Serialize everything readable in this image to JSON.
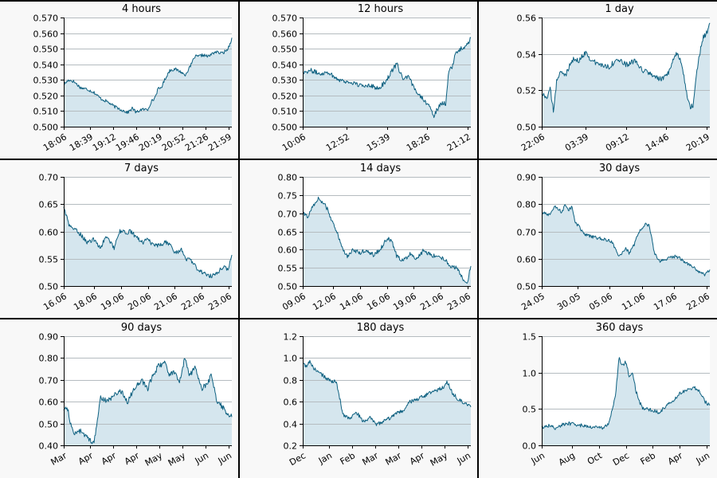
{
  "colors": {
    "line": "#0d6080",
    "fill": "#d5e6ee",
    "grid": "#b5bcc0",
    "axis": "#000000",
    "panel_bg": "#f8f8f8",
    "divider": "#000000"
  },
  "chart_data": [
    {
      "type": "area",
      "title": "4 hours",
      "ylim": [
        0.5,
        0.57
      ],
      "yticks": [
        "0.500",
        "0.510",
        "0.520",
        "0.530",
        "0.540",
        "0.550",
        "0.560",
        "0.570"
      ],
      "xticks": [
        "18:06",
        "18:39",
        "19:12",
        "19:46",
        "20:19",
        "20:52",
        "21:26",
        "21:59"
      ],
      "grid": "horizontal",
      "x": [
        0,
        0.03,
        0.06,
        0.1,
        0.14,
        0.18,
        0.22,
        0.26,
        0.3,
        0.34,
        0.38,
        0.41,
        0.43,
        0.46,
        0.5,
        0.52,
        0.54,
        0.56,
        0.58,
        0.6,
        0.63,
        0.66,
        0.7,
        0.72,
        0.75,
        0.78,
        0.8,
        0.83,
        0.86,
        0.9,
        0.94,
        0.97,
        0.985,
        1.0
      ],
      "values": [
        0.527,
        0.53,
        0.529,
        0.525,
        0.524,
        0.522,
        0.518,
        0.516,
        0.513,
        0.511,
        0.509,
        0.512,
        0.509,
        0.511,
        0.511,
        0.516,
        0.518,
        0.524,
        0.525,
        0.53,
        0.536,
        0.537,
        0.535,
        0.533,
        0.538,
        0.545,
        0.545,
        0.546,
        0.545,
        0.548,
        0.547,
        0.549,
        0.552,
        0.557
      ],
      "noise": 0.001
    },
    {
      "type": "area",
      "title": "12 hours",
      "ylim": [
        0.5,
        0.57
      ],
      "yticks": [
        "0.500",
        "0.510",
        "0.520",
        "0.530",
        "0.540",
        "0.550",
        "0.560",
        "0.570"
      ],
      "xticks": [
        "10:06",
        "12:52",
        "15:39",
        "18:26",
        "21:12"
      ],
      "grid": "horizontal",
      "x": [
        0,
        0.05,
        0.1,
        0.15,
        0.2,
        0.25,
        0.3,
        0.35,
        0.4,
        0.45,
        0.5,
        0.53,
        0.56,
        0.6,
        0.63,
        0.66,
        0.7,
        0.74,
        0.78,
        0.82,
        0.85,
        0.87,
        0.89,
        0.91,
        0.94,
        0.97,
        1.0
      ],
      "values": [
        0.535,
        0.536,
        0.534,
        0.535,
        0.531,
        0.529,
        0.528,
        0.526,
        0.527,
        0.524,
        0.53,
        0.536,
        0.54,
        0.53,
        0.532,
        0.525,
        0.52,
        0.515,
        0.507,
        0.515,
        0.515,
        0.537,
        0.538,
        0.547,
        0.55,
        0.551,
        0.557
      ],
      "noise": 0.0015
    },
    {
      "type": "area",
      "title": "1 day",
      "ylim": [
        0.5,
        0.56
      ],
      "yticks": [
        "0.50",
        "0.52",
        "0.54",
        "0.56"
      ],
      "xticks": [
        "22:06",
        "03:39",
        "09:12",
        "14:46",
        "20:19"
      ],
      "grid": "horizontal",
      "x": [
        0,
        0.03,
        0.05,
        0.07,
        0.09,
        0.11,
        0.14,
        0.18,
        0.22,
        0.26,
        0.3,
        0.35,
        0.4,
        0.45,
        0.5,
        0.55,
        0.6,
        0.65,
        0.7,
        0.73,
        0.76,
        0.8,
        0.83,
        0.86,
        0.88,
        0.9,
        0.93,
        0.96,
        0.98,
        1.0
      ],
      "values": [
        0.518,
        0.516,
        0.521,
        0.508,
        0.526,
        0.53,
        0.528,
        0.537,
        0.536,
        0.541,
        0.536,
        0.534,
        0.533,
        0.537,
        0.534,
        0.536,
        0.531,
        0.529,
        0.526,
        0.527,
        0.53,
        0.541,
        0.536,
        0.52,
        0.511,
        0.512,
        0.536,
        0.549,
        0.551,
        0.557
      ],
      "noise": 0.0015
    },
    {
      "type": "area",
      "title": "7 days",
      "ylim": [
        0.5,
        0.7
      ],
      "yticks": [
        "0.50",
        "0.55",
        "0.60",
        "0.65",
        "0.70"
      ],
      "xticks": [
        "16.06",
        "18.06",
        "19.06",
        "20.06",
        "21.06",
        "22.06",
        "23.06"
      ],
      "grid": "horizontal",
      "x": [
        0,
        0.01,
        0.03,
        0.06,
        0.1,
        0.14,
        0.18,
        0.22,
        0.25,
        0.28,
        0.3,
        0.33,
        0.37,
        0.4,
        0.43,
        0.47,
        0.5,
        0.53,
        0.56,
        0.6,
        0.63,
        0.66,
        0.7,
        0.73,
        0.76,
        0.8,
        0.83,
        0.86,
        0.9,
        0.93,
        0.96,
        0.98,
        1.0
      ],
      "values": [
        0.645,
        0.635,
        0.612,
        0.605,
        0.595,
        0.58,
        0.585,
        0.57,
        0.59,
        0.58,
        0.57,
        0.6,
        0.598,
        0.6,
        0.59,
        0.58,
        0.585,
        0.575,
        0.573,
        0.58,
        0.578,
        0.56,
        0.566,
        0.55,
        0.545,
        0.53,
        0.525,
        0.518,
        0.52,
        0.53,
        0.535,
        0.53,
        0.557
      ],
      "noise": 0.004
    },
    {
      "type": "area",
      "title": "14 days",
      "ylim": [
        0.5,
        0.8
      ],
      "yticks": [
        "0.50",
        "0.55",
        "0.60",
        "0.65",
        "0.70",
        "0.75",
        "0.80"
      ],
      "xticks": [
        "09.06",
        "12.06",
        "14.06",
        "16.06",
        "19.06",
        "21.06",
        "23.06"
      ],
      "grid": "horizontal",
      "x": [
        0,
        0.03,
        0.06,
        0.09,
        0.12,
        0.15,
        0.18,
        0.21,
        0.24,
        0.27,
        0.3,
        0.34,
        0.38,
        0.42,
        0.46,
        0.5,
        0.53,
        0.56,
        0.6,
        0.64,
        0.68,
        0.72,
        0.76,
        0.8,
        0.84,
        0.88,
        0.92,
        0.95,
        0.98,
        1.0
      ],
      "values": [
        0.7,
        0.69,
        0.72,
        0.74,
        0.73,
        0.71,
        0.67,
        0.64,
        0.6,
        0.58,
        0.6,
        0.59,
        0.6,
        0.585,
        0.6,
        0.63,
        0.625,
        0.58,
        0.57,
        0.59,
        0.575,
        0.6,
        0.585,
        0.583,
        0.575,
        0.555,
        0.548,
        0.52,
        0.512,
        0.555
      ],
      "noise": 0.006
    },
    {
      "type": "area",
      "title": "30 days",
      "ylim": [
        0.5,
        0.9
      ],
      "yticks": [
        "0.50",
        "0.60",
        "0.70",
        "0.80",
        "0.90"
      ],
      "xticks": [
        "24.05",
        "30.05",
        "05.06",
        "11.06",
        "17.06",
        "22.06"
      ],
      "grid": "horizontal",
      "x": [
        0,
        0.04,
        0.08,
        0.12,
        0.14,
        0.16,
        0.18,
        0.2,
        0.22,
        0.25,
        0.3,
        0.34,
        0.38,
        0.42,
        0.46,
        0.5,
        0.52,
        0.55,
        0.58,
        0.62,
        0.64,
        0.67,
        0.7,
        0.75,
        0.8,
        0.85,
        0.9,
        0.94,
        0.97,
        1.0
      ],
      "values": [
        0.77,
        0.76,
        0.79,
        0.77,
        0.8,
        0.78,
        0.79,
        0.73,
        0.72,
        0.69,
        0.68,
        0.675,
        0.67,
        0.66,
        0.61,
        0.64,
        0.62,
        0.65,
        0.7,
        0.73,
        0.72,
        0.62,
        0.59,
        0.6,
        0.61,
        0.59,
        0.57,
        0.55,
        0.54,
        0.56
      ],
      "noise": 0.006
    },
    {
      "type": "area",
      "title": "90 days",
      "ylim": [
        0.4,
        0.9
      ],
      "yticks": [
        "0.40",
        "0.50",
        "0.60",
        "0.70",
        "0.80",
        "0.90"
      ],
      "xticks": [
        "Mar",
        "Apr",
        "Apr",
        "Apr",
        "May",
        "May",
        "Jun",
        "Jun"
      ],
      "grid": "horizontal",
      "x": [
        0,
        0.02,
        0.04,
        0.06,
        0.09,
        0.12,
        0.15,
        0.18,
        0.22,
        0.26,
        0.3,
        0.34,
        0.38,
        0.42,
        0.46,
        0.5,
        0.53,
        0.56,
        0.6,
        0.63,
        0.66,
        0.69,
        0.72,
        0.75,
        0.78,
        0.82,
        0.85,
        0.88,
        0.91,
        0.94,
        0.97,
        1.0
      ],
      "values": [
        0.56,
        0.58,
        0.5,
        0.45,
        0.47,
        0.45,
        0.43,
        0.41,
        0.62,
        0.6,
        0.63,
        0.65,
        0.6,
        0.66,
        0.7,
        0.66,
        0.72,
        0.76,
        0.78,
        0.72,
        0.74,
        0.69,
        0.8,
        0.72,
        0.76,
        0.66,
        0.68,
        0.72,
        0.6,
        0.58,
        0.55,
        0.53
      ],
      "noise": 0.012
    },
    {
      "type": "area",
      "title": "180 days",
      "ylim": [
        0.2,
        1.2
      ],
      "yticks": [
        "0.2",
        "0.4",
        "0.6",
        "0.8",
        "1.0",
        "1.2"
      ],
      "xticks": [
        "Dec",
        "Jan",
        "Feb",
        "Mar",
        "Mar",
        "Apr",
        "May",
        "Jun"
      ],
      "grid": "horizontal",
      "x": [
        0,
        0.02,
        0.04,
        0.07,
        0.1,
        0.13,
        0.16,
        0.2,
        0.24,
        0.28,
        0.32,
        0.36,
        0.4,
        0.44,
        0.48,
        0.52,
        0.56,
        0.6,
        0.64,
        0.68,
        0.72,
        0.76,
        0.8,
        0.84,
        0.86,
        0.89,
        0.92,
        0.95,
        0.98,
        1.0
      ],
      "values": [
        0.95,
        0.92,
        0.97,
        0.9,
        0.86,
        0.83,
        0.79,
        0.78,
        0.48,
        0.45,
        0.5,
        0.42,
        0.45,
        0.39,
        0.42,
        0.45,
        0.49,
        0.52,
        0.6,
        0.62,
        0.65,
        0.68,
        0.7,
        0.74,
        0.78,
        0.68,
        0.63,
        0.6,
        0.58,
        0.55
      ],
      "noise": 0.018
    },
    {
      "type": "area",
      "title": "360 days",
      "ylim": [
        0.0,
        1.5
      ],
      "yticks": [
        "0.0",
        "0.5",
        "1.0",
        "1.5"
      ],
      "xticks": [
        "Jun",
        "Aug",
        "Oct",
        "Dec",
        "Feb",
        "Apr",
        "Jun"
      ],
      "grid": "horizontal",
      "x": [
        0,
        0.04,
        0.08,
        0.12,
        0.16,
        0.2,
        0.24,
        0.28,
        0.32,
        0.36,
        0.4,
        0.42,
        0.44,
        0.46,
        0.48,
        0.5,
        0.52,
        0.54,
        0.56,
        0.58,
        0.6,
        0.63,
        0.66,
        0.7,
        0.74,
        0.78,
        0.82,
        0.86,
        0.9,
        0.94,
        0.97,
        1.0
      ],
      "values": [
        0.25,
        0.27,
        0.24,
        0.28,
        0.3,
        0.29,
        0.27,
        0.26,
        0.25,
        0.24,
        0.3,
        0.5,
        0.7,
        1.2,
        1.1,
        1.15,
        0.95,
        1.0,
        0.75,
        0.6,
        0.52,
        0.5,
        0.48,
        0.45,
        0.55,
        0.6,
        0.72,
        0.75,
        0.8,
        0.75,
        0.6,
        0.55
      ],
      "noise": 0.025
    }
  ]
}
